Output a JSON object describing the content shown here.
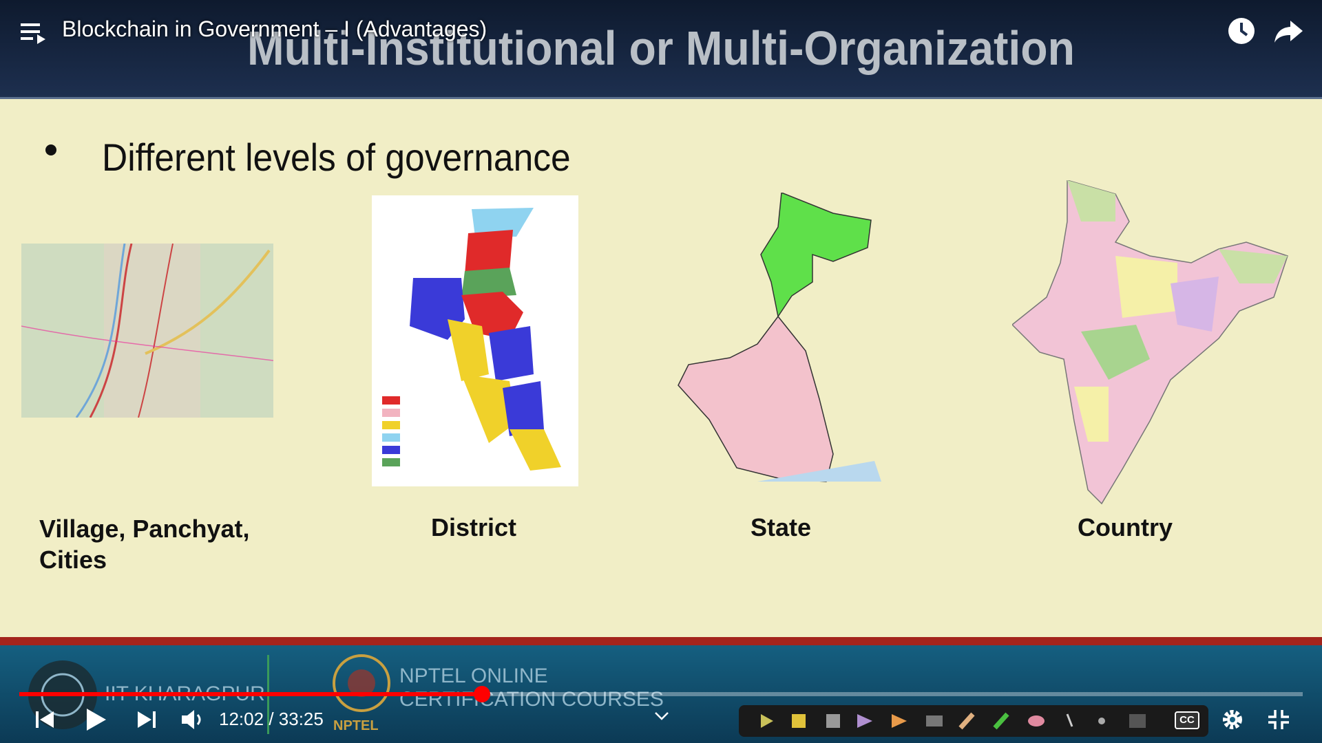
{
  "player": {
    "video_title": "Blockchain in Government – I (Advantages)",
    "current_time": "12:02",
    "time_separator": "/",
    "duration": "33:25",
    "captions_label": "CC"
  },
  "slide": {
    "title": "Multi-Institutional or Multi-Organization",
    "bullet": "Different levels of governance",
    "levels": [
      "Village, Panchyat, Cities",
      "District",
      "State",
      "Country"
    ]
  },
  "banner": {
    "institute": "IIT KHARAGPUR",
    "program_line1": "NPTEL ONLINE",
    "program_line2": "CERTIFICATION COURSES",
    "logo_text": "NPTEL"
  }
}
